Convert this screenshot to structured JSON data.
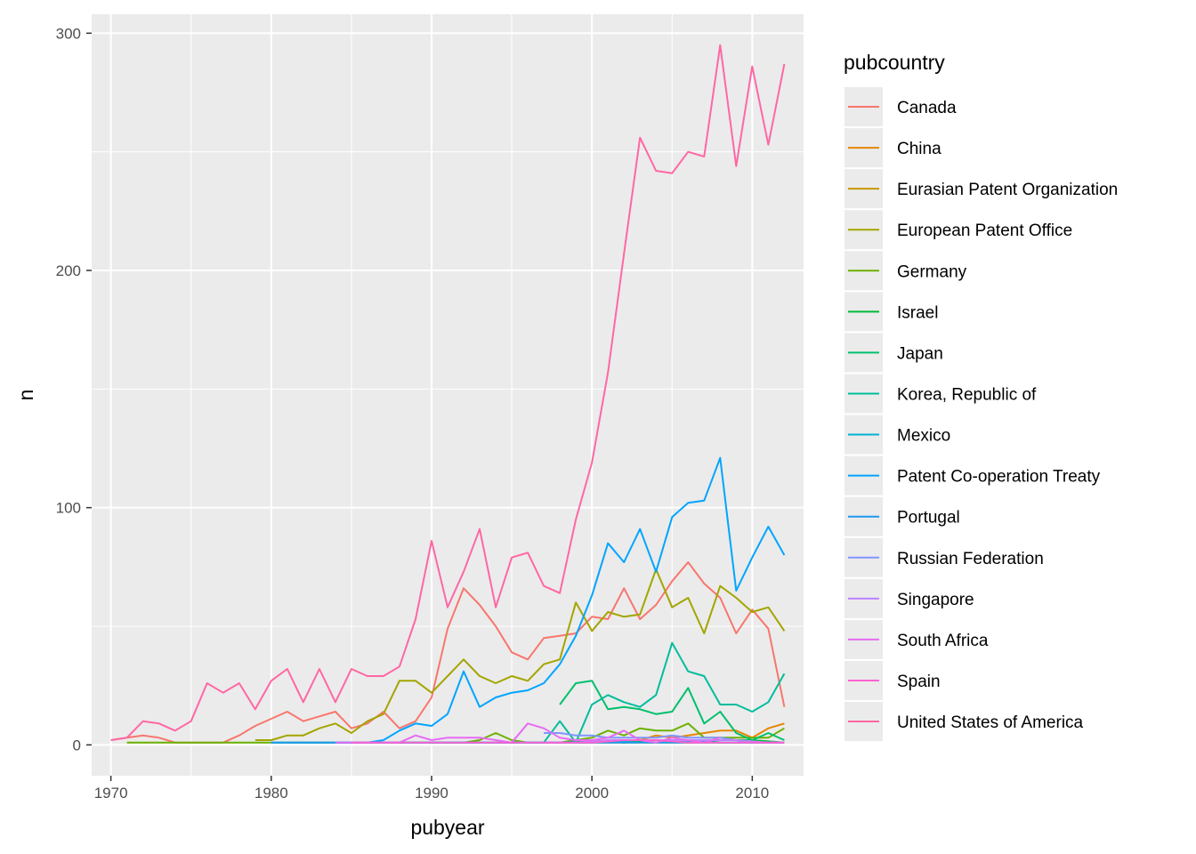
{
  "chart_data": {
    "type": "line",
    "xlabel": "pubyear",
    "ylabel": "n",
    "xlim": [
      1968.8,
      2013.2
    ],
    "ylim": [
      -13,
      308
    ],
    "xticks": [
      1970,
      1980,
      1990,
      2000,
      2010
    ],
    "yticks": [
      0,
      100,
      200,
      300
    ],
    "grid": true,
    "legend_title": "pubcountry",
    "legend_position": "right",
    "series": [
      {
        "name": "Canada",
        "color": "#F8766D",
        "x": [
          1970,
          1971,
          1972,
          1973,
          1974,
          1975,
          1976,
          1977,
          1978,
          1979,
          1980,
          1981,
          1982,
          1983,
          1984,
          1985,
          1986,
          1987,
          1988,
          1989,
          1990,
          1991,
          1992,
          1993,
          1994,
          1995,
          1996,
          1997,
          1998,
          1999,
          2000,
          2001,
          2002,
          2003,
          2004,
          2005,
          2006,
          2007,
          2008,
          2009,
          2010,
          2011,
          2012
        ],
        "y": [
          2,
          3,
          4,
          3,
          1,
          1,
          1,
          1,
          4,
          8,
          11,
          14,
          10,
          12,
          14,
          7,
          9,
          14,
          7,
          10,
          20,
          49,
          66,
          59,
          50,
          39,
          36,
          45,
          46,
          47,
          54,
          53,
          66,
          53,
          59,
          69,
          77,
          68,
          62,
          47,
          57,
          49,
          16
        ]
      },
      {
        "name": "China",
        "color": "#E58700",
        "x": [
          1997,
          1998,
          1999,
          2000,
          2001,
          2002,
          2003,
          2004,
          2005,
          2006,
          2007,
          2008,
          2009,
          2010,
          2011,
          2012
        ],
        "y": [
          1,
          1,
          1,
          1,
          2,
          1,
          2,
          4,
          3,
          4,
          5,
          6,
          6,
          3,
          7,
          9
        ]
      },
      {
        "name": "Eurasian Patent Organization",
        "color": "#C99800",
        "x": [
          1998,
          1999,
          2000,
          2001,
          2002,
          2003,
          2004,
          2005,
          2006,
          2007,
          2008,
          2009,
          2010,
          2011,
          2012
        ],
        "y": [
          1,
          1,
          1,
          1,
          1,
          1,
          1,
          1,
          1,
          1,
          1,
          1,
          1,
          1,
          1
        ]
      },
      {
        "name": "European Patent Office",
        "color": "#A3A500",
        "x": [
          1979,
          1980,
          1981,
          1982,
          1983,
          1984,
          1985,
          1986,
          1987,
          1988,
          1989,
          1990,
          1991,
          1992,
          1993,
          1994,
          1995,
          1996,
          1997,
          1998,
          1999,
          2000,
          2001,
          2002,
          2003,
          2004,
          2005,
          2006,
          2007,
          2008,
          2009,
          2010,
          2011,
          2012
        ],
        "y": [
          2,
          2,
          4,
          4,
          7,
          9,
          5,
          10,
          13,
          27,
          27,
          22,
          29,
          36,
          29,
          26,
          29,
          27,
          34,
          36,
          60,
          48,
          56,
          54,
          55,
          74,
          58,
          62,
          47,
          67,
          62,
          56,
          58,
          48
        ]
      },
      {
        "name": "Germany",
        "color": "#6BB100",
        "x": [
          1971,
          1972,
          1973,
          1974,
          1975,
          1976,
          1977,
          1978,
          1979,
          1980,
          1981,
          1982,
          1983,
          1984,
          1985,
          1986,
          1987,
          1988,
          1989,
          1990,
          1991,
          1992,
          1993,
          1994,
          1995,
          1996,
          1997,
          1998,
          1999,
          2000,
          2001,
          2002,
          2003,
          2004,
          2005,
          2006,
          2007,
          2008,
          2009,
          2010,
          2011,
          2012
        ],
        "y": [
          1,
          1,
          1,
          1,
          1,
          1,
          1,
          1,
          1,
          1,
          1,
          1,
          1,
          1,
          1,
          1,
          1,
          1,
          1,
          1,
          1,
          1,
          2,
          5,
          2,
          1,
          1,
          1,
          2,
          3,
          6,
          4,
          7,
          6,
          6,
          9,
          3,
          3,
          3,
          3,
          3,
          7
        ]
      },
      {
        "name": "Israel",
        "color": "#00BA38",
        "x": [
          1985,
          1988,
          1990,
          1992,
          1994,
          1996,
          1998,
          2000,
          2002,
          2004,
          2005,
          2006,
          2008,
          2010,
          2012
        ],
        "y": [
          1,
          1,
          1,
          1,
          1,
          1,
          1,
          2,
          1,
          2,
          2,
          1,
          2,
          2,
          1
        ]
      },
      {
        "name": "Japan",
        "color": "#00C06B",
        "x": [
          1998,
          1999,
          2000,
          2001,
          2002,
          2003,
          2004,
          2005,
          2006,
          2007,
          2008,
          2009,
          2010,
          2011,
          2012
        ],
        "y": [
          17,
          26,
          27,
          15,
          16,
          15,
          13,
          14,
          24,
          9,
          14,
          5,
          2,
          5,
          2
        ]
      },
      {
        "name": "Korea, Republic of",
        "color": "#00BD9C",
        "x": [
          1996,
          1997,
          1998,
          1999,
          2000,
          2001,
          2002,
          2003,
          2004,
          2005,
          2006,
          2007,
          2008,
          2009,
          2010,
          2011,
          2012
        ],
        "y": [
          1,
          1,
          10,
          1,
          17,
          21,
          18,
          16,
          21,
          43,
          31,
          29,
          17,
          17,
          14,
          18,
          30
        ]
      },
      {
        "name": "Mexico",
        "color": "#00B3D1",
        "x": [
          1980,
          1985,
          1990,
          1995,
          2000,
          2003,
          2005,
          2008,
          2010,
          2012
        ],
        "y": [
          1,
          1,
          1,
          1,
          1,
          2,
          2,
          1,
          1,
          1
        ]
      },
      {
        "name": "Patent Co-operation Treaty",
        "color": "#00A5FF",
        "x": [
          1984,
          1985,
          1986,
          1987,
          1988,
          1989,
          1990,
          1991,
          1992,
          1993,
          1994,
          1995,
          1996,
          1997,
          1998,
          1999,
          2000,
          2001,
          2002,
          2003,
          2004,
          2005,
          2006,
          2007,
          2008,
          2009,
          2010,
          2011,
          2012
        ],
        "y": [
          1,
          1,
          1,
          2,
          6,
          9,
          8,
          13,
          31,
          16,
          20,
          22,
          23,
          26,
          34,
          46,
          63,
          85,
          77,
          91,
          73,
          96,
          102,
          103,
          121,
          65,
          79,
          92,
          80
        ]
      },
      {
        "name": "Portugal",
        "color": "#1C9AF0",
        "x": [
          1980,
          1985,
          1990,
          1995,
          2000,
          2005,
          2010,
          2012
        ],
        "y": [
          1,
          1,
          1,
          1,
          1,
          1,
          1,
          1
        ]
      },
      {
        "name": "Russian Federation",
        "color": "#7F96FF",
        "x": [
          1997,
          1998,
          1999,
          2000,
          2001,
          2002,
          2003,
          2004,
          2005,
          2006,
          2007,
          2008,
          2009,
          2010,
          2011,
          2012
        ],
        "y": [
          5,
          5,
          4,
          4,
          3,
          3,
          3,
          3,
          4,
          3,
          3,
          3,
          2,
          1,
          1,
          1
        ]
      },
      {
        "name": "Singapore",
        "color": "#BE82FF",
        "x": [
          1997,
          1999,
          2001,
          2003,
          2005,
          2007,
          2009,
          2011,
          2012
        ],
        "y": [
          1,
          1,
          2,
          2,
          2,
          2,
          2,
          1,
          1
        ]
      },
      {
        "name": "South Africa",
        "color": "#E76BF3",
        "x": [
          1984,
          1986,
          1988,
          1989,
          1990,
          1991,
          1992,
          1993,
          1994,
          1995,
          1996,
          1997,
          1998,
          1999,
          2000,
          2001,
          2002,
          2003,
          2004,
          2005,
          2006,
          2007,
          2008
        ],
        "y": [
          1,
          1,
          1,
          4,
          2,
          3,
          3,
          3,
          2,
          1,
          9,
          7,
          3,
          2,
          2,
          3,
          6,
          2,
          1,
          3,
          2,
          1,
          3
        ]
      },
      {
        "name": "Spain",
        "color": "#FD61D1",
        "x": [
          1985,
          1990,
          1995,
          2000,
          2002,
          2004,
          2006,
          2008,
          2010,
          2012
        ],
        "y": [
          1,
          1,
          1,
          1,
          2,
          2,
          1,
          1,
          1,
          1
        ]
      },
      {
        "name": "United States of America",
        "color": "#FF67A4",
        "x": [
          1970,
          1971,
          1972,
          1973,
          1974,
          1975,
          1976,
          1977,
          1978,
          1979,
          1980,
          1981,
          1982,
          1983,
          1984,
          1985,
          1986,
          1987,
          1988,
          1989,
          1990,
          1991,
          1992,
          1993,
          1994,
          1995,
          1996,
          1997,
          1998,
          1999,
          2000,
          2001,
          2002,
          2003,
          2004,
          2005,
          2006,
          2007,
          2008,
          2009,
          2010,
          2011,
          2012
        ],
        "y": [
          2,
          3,
          10,
          9,
          6,
          10,
          26,
          22,
          26,
          15,
          27,
          32,
          18,
          32,
          18,
          32,
          29,
          29,
          33,
          53,
          86,
          58,
          73,
          91,
          58,
          79,
          81,
          67,
          64,
          95,
          119,
          157,
          207,
          256,
          242,
          241,
          250,
          248,
          295,
          244,
          286,
          253,
          287
        ]
      }
    ]
  }
}
